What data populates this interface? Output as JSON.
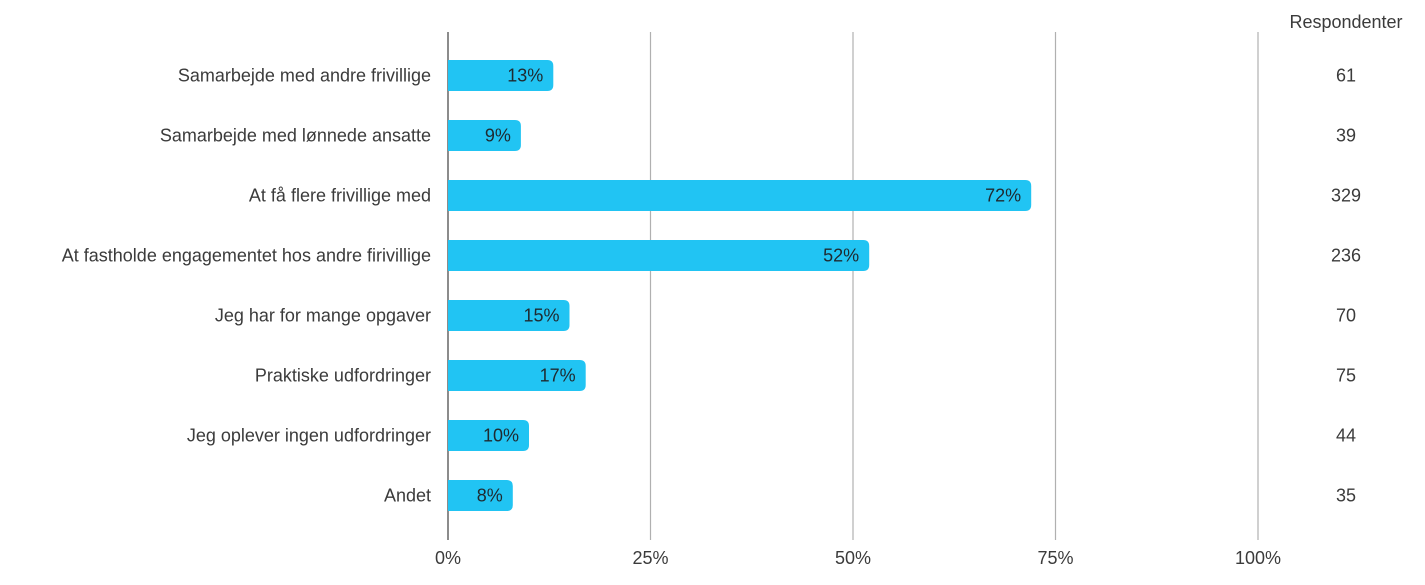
{
  "chart_data": {
    "type": "bar",
    "orientation": "horizontal",
    "categories": [
      "Samarbejde med andre frivillige",
      "Samarbejde med lønnede ansatte",
      "At få flere frivillige med",
      "At fastholde engagementet hos andre firivillige",
      "Jeg har for mange opgaver",
      "Praktiske udfordringer",
      "Jeg oplever ingen udfordringer",
      "Andet"
    ],
    "values": [
      13,
      9,
      72,
      52,
      15,
      17,
      10,
      8
    ],
    "value_labels": [
      "13%",
      "9%",
      "72%",
      "52%",
      "15%",
      "17%",
      "10%",
      "8%"
    ],
    "respondents_header": "Respondenter",
    "respondents": [
      "61",
      "39",
      "329",
      "236",
      "70",
      "75",
      "44",
      "35"
    ],
    "x_ticks": [
      0,
      25,
      50,
      75,
      100
    ],
    "x_tick_labels": [
      "0%",
      "25%",
      "50%",
      "75%",
      "100%"
    ],
    "xlim": [
      0,
      100
    ],
    "grid": true,
    "title": "",
    "xlabel": "",
    "ylabel": "",
    "colors": {
      "bar": "#21C4F3",
      "grid": "#b0b0b0",
      "axis": "#8c8c8c",
      "text": "#3b3b3b"
    }
  }
}
